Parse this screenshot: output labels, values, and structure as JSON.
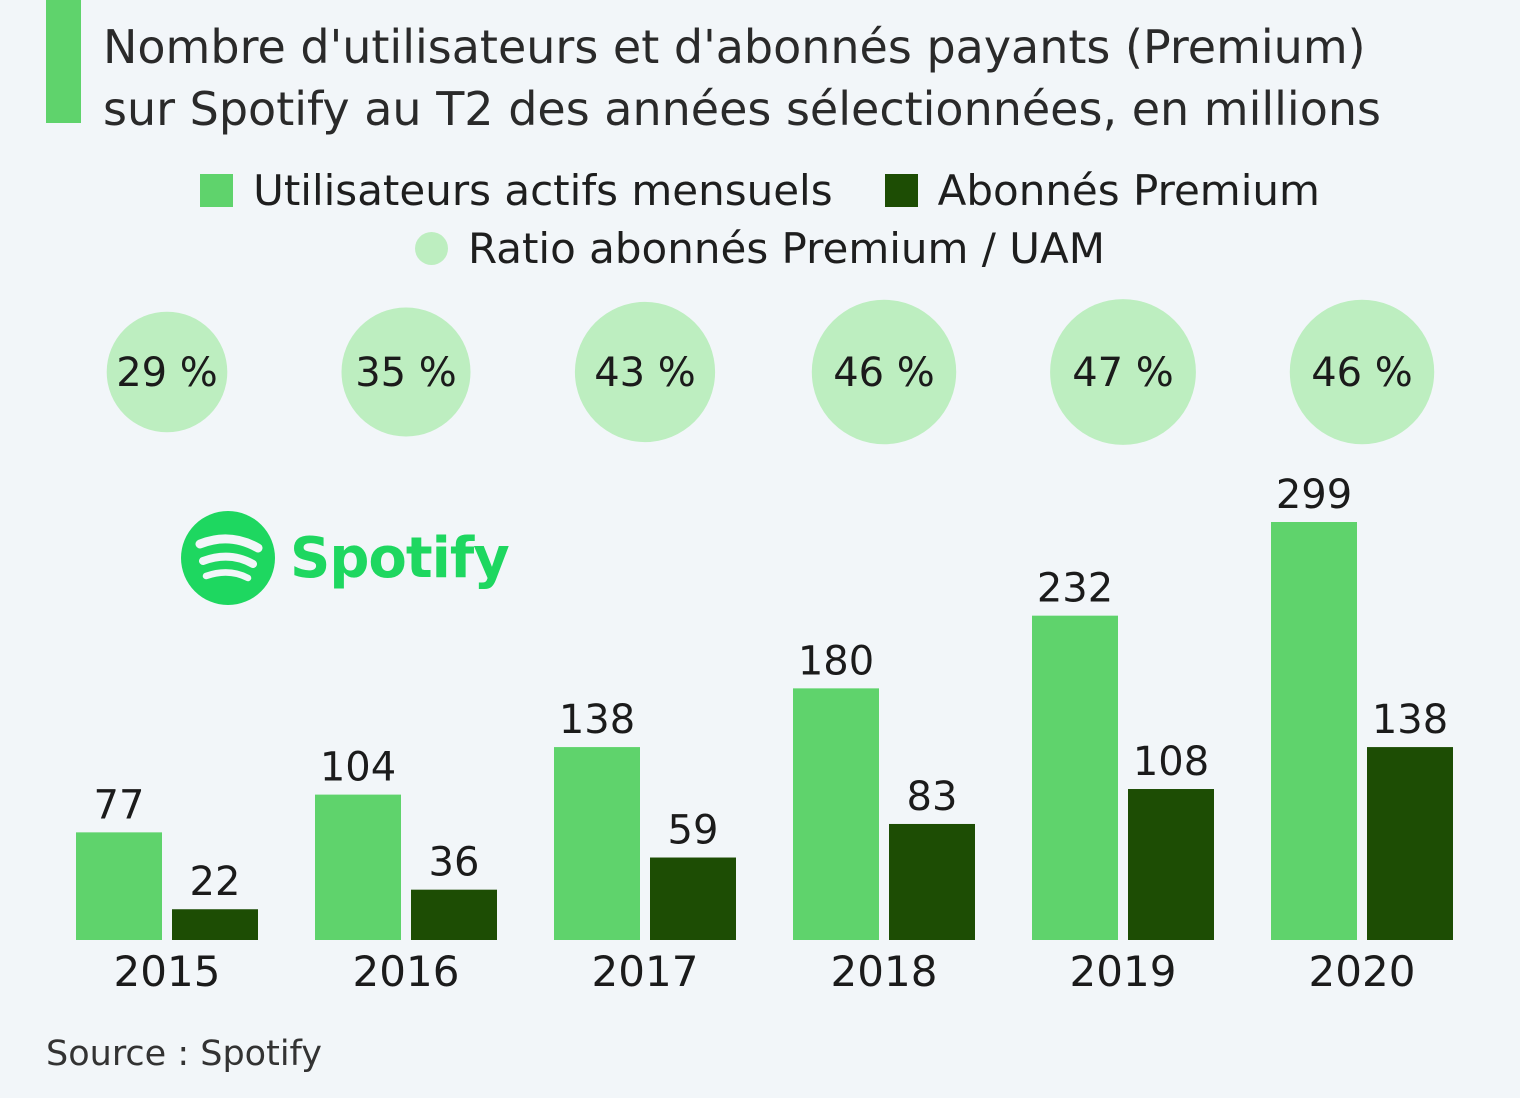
{
  "title": {
    "line1": "Nombre d'utilisateurs et d'abonnés payants (Premium)",
    "line2": "sur Spotify au T2 des années sélectionnées, en millions"
  },
  "legend": {
    "mau": "Utilisateurs actifs mensuels",
    "premium": "Abonnés Premium",
    "ratio": "Ratio abonnés Premium / UAM"
  },
  "logo": {
    "text": "Spotify"
  },
  "source": "Source : Spotify",
  "colors": {
    "mau": "#5fd36c",
    "premium": "#1d4d04",
    "ratio": "#bdeec0",
    "title_bar": "#5fd36c",
    "spotify": "#1ed760"
  },
  "chart_data": {
    "type": "bar",
    "title": "Nombre d'utilisateurs et d'abonnés payants (Premium) sur Spotify au T2 des années sélectionnées, en millions",
    "categories": [
      "2015",
      "2016",
      "2017",
      "2018",
      "2019",
      "2020"
    ],
    "series": [
      {
        "name": "Utilisateurs actifs mensuels",
        "values": [
          77,
          104,
          138,
          180,
          232,
          299
        ]
      },
      {
        "name": "Abonnés Premium",
        "values": [
          22,
          36,
          59,
          83,
          108,
          138
        ]
      }
    ],
    "ratio": {
      "name": "Ratio abonnés Premium / UAM",
      "labels": [
        "29 %",
        "35 %",
        "43 %",
        "46 %",
        "47 %",
        "46 %"
      ],
      "values": [
        29,
        35,
        43,
        46,
        47,
        46
      ]
    },
    "ylim": [
      0,
      299
    ],
    "xlabel": "",
    "ylabel": "",
    "grid": false,
    "legend_position": "top-center"
  }
}
